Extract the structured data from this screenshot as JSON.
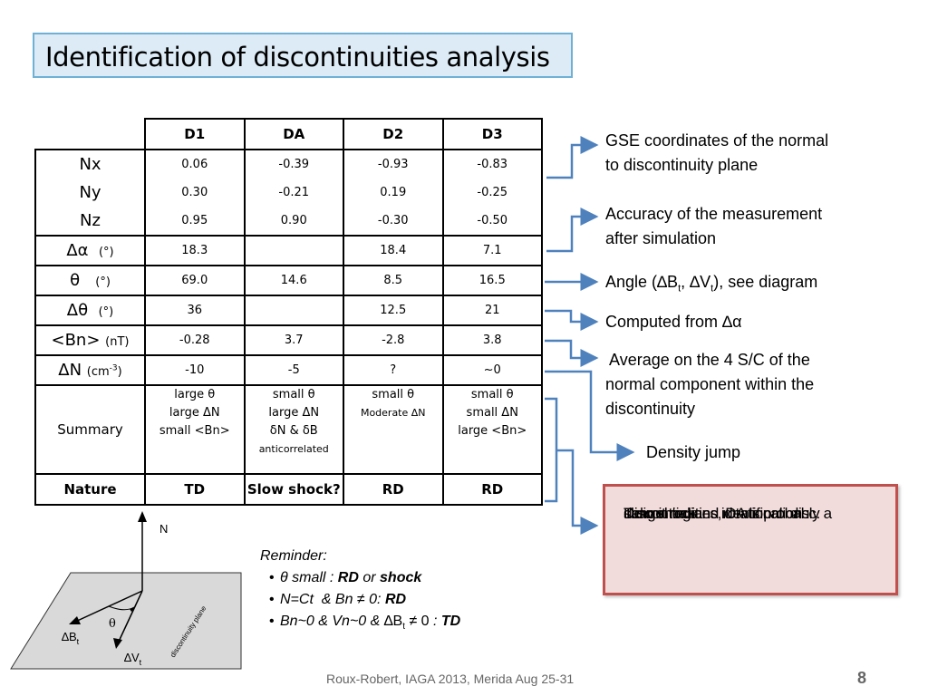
{
  "title": "Identification of discontinuities analysis",
  "table": {
    "headers": [
      "D1",
      "DA",
      "D2",
      "D3"
    ],
    "rows": {
      "nx": {
        "label": "Nx",
        "values": [
          "0.06",
          "-0.39",
          "-0.93",
          "-0.83"
        ]
      },
      "ny": {
        "label": "Ny",
        "values": [
          "0.30",
          "-0.21",
          "0.19",
          "-0.25"
        ]
      },
      "nz": {
        "label": "Nz",
        "values": [
          "0.95",
          "0.90",
          "-0.30",
          "-0.50"
        ]
      },
      "dalpha": {
        "label": "Δα",
        "unit": "(°)",
        "values": [
          "18.3",
          "",
          "18.4",
          "7.1"
        ]
      },
      "theta": {
        "label": "θ",
        "unit": "(°)",
        "values": [
          "69.0",
          "14.6",
          "8.5",
          "16.5"
        ]
      },
      "dtheta": {
        "label": "Δθ",
        "unit": "(°)",
        "values": [
          "36",
          "",
          "12.5",
          "21"
        ]
      },
      "bn": {
        "label": "<Bn>",
        "unit": "(nT)",
        "values": [
          "-0.28",
          "3.7",
          "-2.8",
          "3.8"
        ]
      },
      "dn": {
        "label": "ΔN",
        "unit": "(cm",
        "unit_sup": "-3",
        "unit_end": ")",
        "values": [
          "-10",
          "-5",
          "?",
          "~0"
        ]
      }
    },
    "summary": {
      "label": "Summary",
      "d1": [
        "large θ",
        "large ΔN",
        "small <Bn>"
      ],
      "da": [
        "small θ",
        "large ΔN",
        "δN & δB",
        "anticorrelated"
      ],
      "d2": [
        "small θ",
        "Moderate ΔN"
      ],
      "d3": [
        "small θ",
        "small ΔN",
        "large <Bn>"
      ]
    },
    "nature": {
      "label": "Nature",
      "values": [
        "TD",
        "Slow shock?",
        "RD",
        "RD"
      ]
    }
  },
  "notes": {
    "gse": [
      "GSE coordinates of the normal",
      "to discontinuity plane"
    ],
    "accuracy": [
      "Accuracy of the measurement",
      "after simulation"
    ],
    "angle": {
      "prefix": "Angle (∆B",
      "sub1": "t",
      "mid": ", ∆V",
      "sub2": "t",
      "suffix": "), see diagram"
    },
    "computed": "Computed from ∆α",
    "average": [
      " Average on the 4 S/C of the",
      "normal component within the",
      "discontinuity"
    ],
    "density": "Density jump"
  },
  "identification": [
    "Discontinuities identification :",
    "Tangential and rotational  disc.",
    "delimit regions, DA is probably a",
    "slow shock"
  ],
  "reminder": {
    "heading": "Reminder:",
    "item1": {
      "a": "θ small : ",
      "b": "RD",
      "c": " or ",
      "d": "shock"
    },
    "item2": {
      "a": "N=Ct  & Bn ≠ 0: ",
      "b": "RD"
    },
    "item3": {
      "a": "Bn~0 & Vn~0 & ",
      "b": "∆B",
      "sub": "t",
      "c": " ≠ 0 ",
      "d": ": ",
      "e": "TD"
    }
  },
  "diagram": {
    "n_label": "N",
    "theta_label": "θ",
    "db_label": "∆B",
    "db_sub": "t",
    "dv_label": "∆V",
    "dv_sub": "t",
    "plane_label": "discontinuity plane"
  },
  "footer": "Roux-Robert, IAGA 2013, Merida Aug 25-31",
  "page_number": "8",
  "colors": {
    "title_fill": "#dcebf6",
    "title_border": "#6fb1d6",
    "arrow": "#4f81bd",
    "red_box_fill": "#f2dcdb",
    "red_box_border": "#c0504d"
  }
}
